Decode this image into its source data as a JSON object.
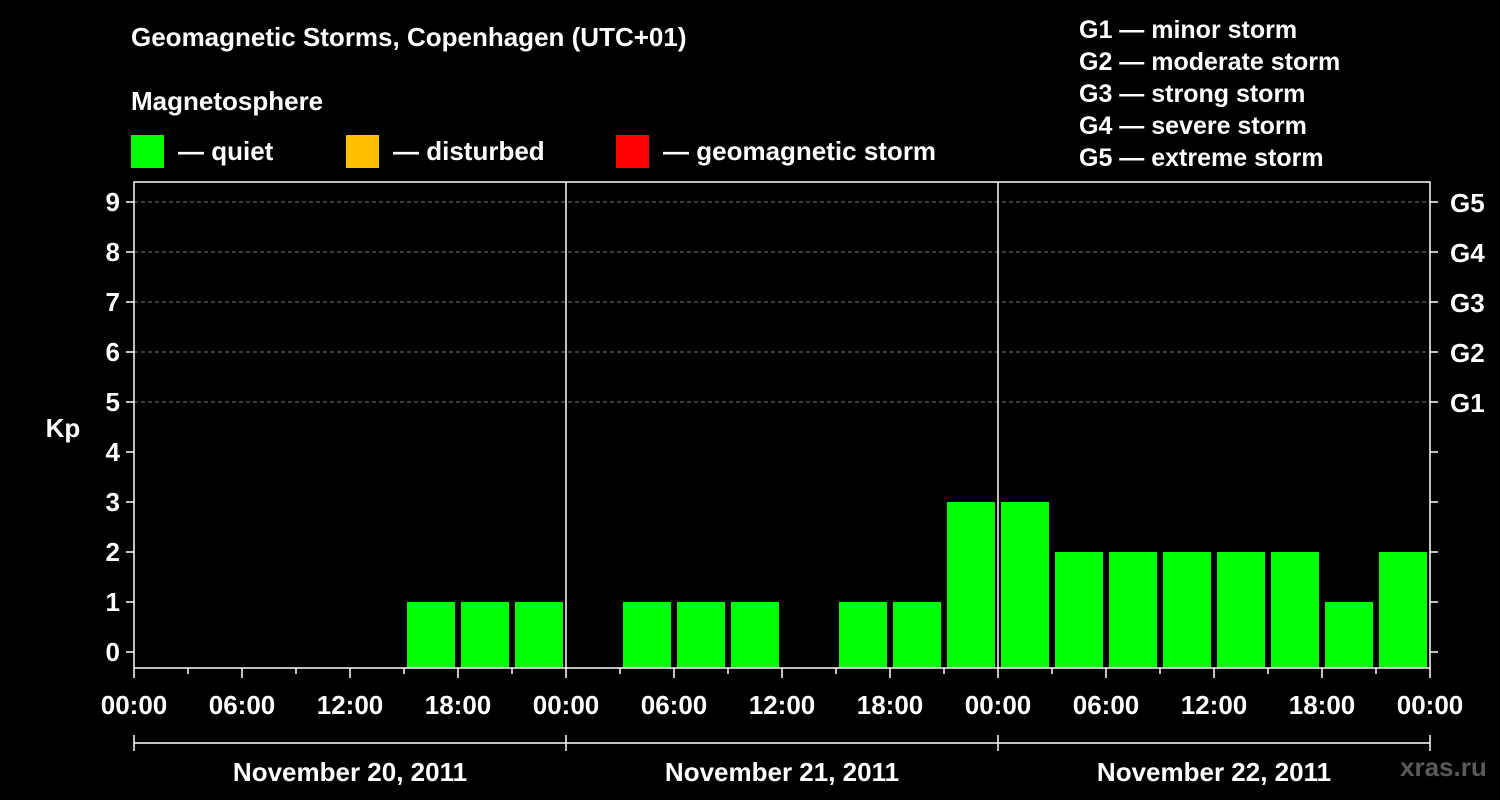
{
  "chart_data": {
    "type": "bar",
    "title": "Geomagnetic Storms, Copenhagen (UTC+01)",
    "subtitle": "Magnetosphere",
    "ylabel": "Kp",
    "ylim": [
      0,
      9
    ],
    "yticks": [
      "0",
      "1",
      "2",
      "3",
      "4",
      "5",
      "6",
      "7",
      "8",
      "9"
    ],
    "right_axis_ticks": [
      {
        "kp": 5,
        "label": "G1"
      },
      {
        "kp": 6,
        "label": "G2"
      },
      {
        "kp": 7,
        "label": "G3"
      },
      {
        "kp": 8,
        "label": "G4"
      },
      {
        "kp": 9,
        "label": "G5"
      }
    ],
    "xtick_labels": [
      "00:00",
      "06:00",
      "12:00",
      "18:00",
      "00:00",
      "06:00",
      "12:00",
      "18:00",
      "00:00",
      "06:00",
      "12:00",
      "18:00",
      "00:00"
    ],
    "days": [
      "November 20, 2011",
      "November 21, 2011",
      "November 22, 2011"
    ],
    "interval_hours": 3,
    "values": [
      0,
      0,
      0,
      0,
      0,
      1,
      1,
      1,
      0,
      1,
      1,
      1,
      0,
      1,
      1,
      3,
      3,
      2,
      2,
      2,
      2,
      2,
      1,
      2
    ],
    "colors": {
      "quiet": "#00ff00",
      "disturbed": "#ffbf00",
      "storm": "#ff0000"
    },
    "legend": [
      {
        "color": "#00ff00",
        "label": "— quiet"
      },
      {
        "color": "#ffbf00",
        "label": "— disturbed"
      },
      {
        "color": "#ff0000",
        "label": "— geomagnetic storm"
      }
    ],
    "storm_scale": [
      "G1 — minor storm",
      "G2 — moderate storm",
      "G3 — strong storm",
      "G4 — severe storm",
      "G5 — extreme storm"
    ],
    "grid": true
  },
  "watermark": "xras.ru"
}
